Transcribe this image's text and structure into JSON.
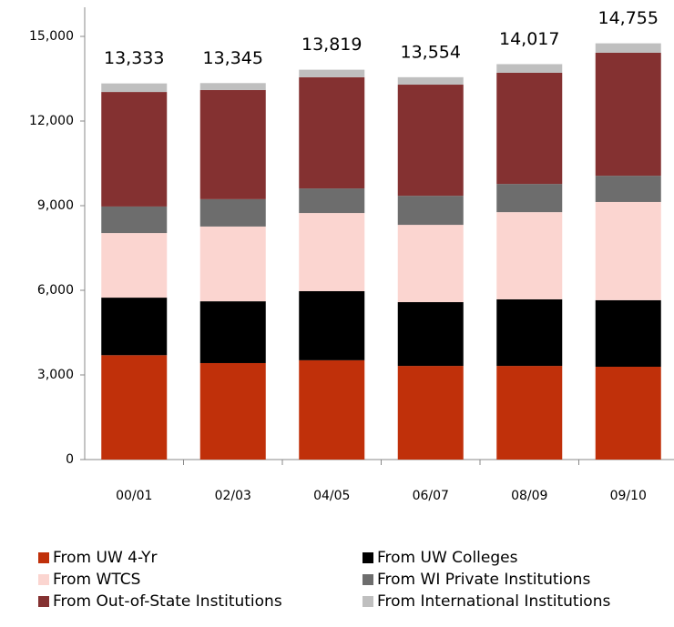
{
  "chart_data": {
    "type": "stacked_bar",
    "categories": [
      "00/01",
      "02/03",
      "04/05",
      "06/07",
      "08/09",
      "09/10"
    ],
    "series": [
      {
        "name": "From UW 4-Yr",
        "color": "#c0300a",
        "values": [
          3700,
          3420,
          3520,
          3320,
          3320,
          3290
        ]
      },
      {
        "name": "From UW Colleges",
        "color": "#000000",
        "values": [
          2040,
          2190,
          2450,
          2260,
          2360,
          2360
        ]
      },
      {
        "name": "From WTCS",
        "color": "#fbd5d0",
        "values": [
          2290,
          2650,
          2770,
          2740,
          3090,
          3480
        ]
      },
      {
        "name": "From WI Private Institutions",
        "color": "#6d6d6d",
        "values": [
          940,
          970,
          870,
          1030,
          1000,
          930
        ]
      },
      {
        "name": "From Out-of-State Institutions",
        "color": "#843131",
        "values": [
          4060,
          3870,
          3940,
          3940,
          3940,
          4360
        ]
      },
      {
        "name": "From International Institutions",
        "color": "#bfbfbf",
        "values": [
          303,
          245,
          269,
          264,
          307,
          335
        ]
      }
    ],
    "totals": [
      13333,
      13345,
      13819,
      13554,
      14017,
      14755
    ],
    "total_labels": [
      "13,333",
      "13,345",
      "13,819",
      "13,554",
      "14,017",
      "14,755"
    ],
    "ylim": [
      0,
      15000
    ],
    "yticks": [
      0,
      {
        "value": 3000,
        "label": "3,000"
      },
      {
        "value": 6000,
        "label": "6,000"
      },
      {
        "value": 9000,
        "label": "9,000"
      },
      {
        "value": 12000,
        "label": "12,000"
      },
      {
        "value": 15000,
        "label": "15,000"
      }
    ],
    "grid": false,
    "legend": "bottom"
  }
}
